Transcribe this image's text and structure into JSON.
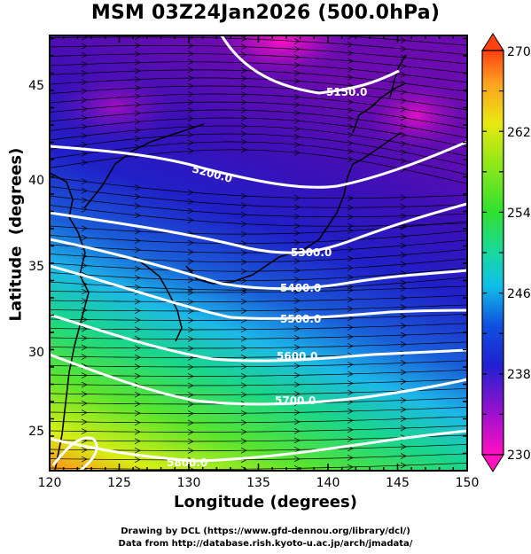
{
  "title": "MSM 03Z24Jan2026 (500.0hPa)",
  "xlabel": "Longitude (degrees)",
  "ylabel": "Latitude  (degrees)",
  "xticks": [
    "120",
    "125",
    "130",
    "135",
    "140",
    "145",
    "150"
  ],
  "yticks": [
    "25",
    "30",
    "35",
    "40",
    "45"
  ],
  "colorbar": {
    "ticks": [
      "230",
      "238",
      "246",
      "254",
      "262",
      "270"
    ],
    "min": 230,
    "max": 270
  },
  "contours": [
    "5150.0",
    "5200.0",
    "5300.0",
    "5400.0",
    "5500.0",
    "5600.0",
    "5700.0",
    "5800.0"
  ],
  "credits": [
    "Drawing by DCL (https://www.gfd-dennou.org/library/dcl/)",
    "Data from http://database.rish.kyoto-u.ac.jp/arch/jmadata/"
  ],
  "colors": {
    "contour": "#ffffff",
    "coast": "#000000",
    "arrow": "#000000"
  }
}
